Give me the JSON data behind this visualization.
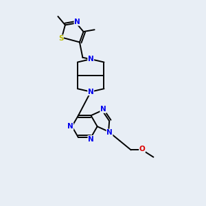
{
  "bg_color": "#e8eef5",
  "bond_color": "#000000",
  "N_color": "#0000ee",
  "S_color": "#bbbb00",
  "O_color": "#dd0000",
  "line_width": 1.4,
  "font_size_atom": 7.5,
  "figsize": [
    3.0,
    3.0
  ],
  "dpi": 100,
  "xlim": [
    0,
    10
  ],
  "ylim": [
    0,
    10
  ]
}
